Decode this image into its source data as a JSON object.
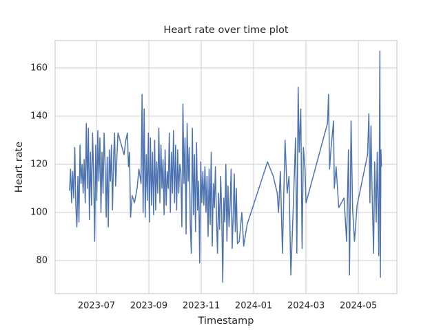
{
  "chart_data": {
    "type": "line",
    "title": "Heart rate over time plot",
    "x_label": "Timestamp",
    "y_label": "Heart rate",
    "color": "#4c72b0",
    "grid": true,
    "xlim": [
      4.42,
      17.47
    ],
    "xticks": [
      {
        "value": 6,
        "label": "2023-07"
      },
      {
        "value": 8,
        "label": "2023-09"
      },
      {
        "value": 10,
        "label": "2023-11"
      },
      {
        "value": 12,
        "label": "2024-01"
      },
      {
        "value": 14,
        "label": "2024-03"
      },
      {
        "value": 16,
        "label": "2024-05"
      }
    ],
    "ylim": [
      66.3,
      171.4
    ],
    "yticks": [
      80,
      100,
      120,
      140,
      160
    ],
    "x": [
      4.97,
      5.01,
      5.05,
      5.09,
      5.13,
      5.17,
      5.21,
      5.25,
      5.29,
      5.33,
      5.37,
      5.41,
      5.45,
      5.49,
      5.53,
      5.57,
      5.61,
      5.65,
      5.69,
      5.73,
      5.77,
      5.81,
      5.85,
      5.89,
      5.93,
      5.97,
      6.01,
      6.05,
      6.09,
      6.13,
      6.17,
      6.21,
      6.25,
      6.29,
      6.33,
      6.37,
      6.41,
      6.45,
      6.49,
      6.53,
      6.57,
      6.61,
      6.65,
      6.69,
      6.73,
      6.82,
      6.95,
      7.05,
      7.12,
      7.18,
      7.22,
      7.26,
      7.3,
      7.36,
      7.45,
      7.55,
      7.62,
      7.7,
      7.74,
      7.78,
      7.82,
      7.86,
      7.9,
      7.94,
      7.98,
      8.02,
      8.06,
      8.1,
      8.14,
      8.18,
      8.22,
      8.26,
      8.3,
      8.34,
      8.38,
      8.42,
      8.46,
      8.5,
      8.54,
      8.58,
      8.62,
      8.66,
      8.7,
      8.74,
      8.78,
      8.82,
      8.86,
      8.9,
      8.94,
      8.98,
      9.02,
      9.06,
      9.1,
      9.14,
      9.18,
      9.22,
      9.26,
      9.3,
      9.34,
      9.38,
      9.42,
      9.46,
      9.5,
      9.54,
      9.58,
      9.62,
      9.66,
      9.7,
      9.74,
      9.78,
      9.82,
      9.86,
      9.9,
      9.94,
      9.98,
      10.02,
      10.06,
      10.1,
      10.14,
      10.18,
      10.22,
      10.26,
      10.3,
      10.34,
      10.38,
      10.42,
      10.46,
      10.5,
      10.54,
      10.58,
      10.62,
      10.66,
      10.7,
      10.74,
      10.78,
      10.82,
      10.86,
      10.9,
      10.94,
      10.98,
      11.02,
      11.06,
      11.1,
      11.14,
      11.18,
      11.22,
      11.26,
      11.3,
      11.34,
      11.38,
      11.45,
      11.55,
      11.62,
      11.75,
      12.53,
      12.75,
      12.9,
      12.95,
      13.02,
      13.1,
      13.2,
      13.28,
      13.35,
      13.42,
      13.5,
      13.6,
      13.65,
      13.7,
      13.74,
      13.8,
      13.85,
      13.9,
      13.96,
      14.0,
      14.82,
      14.86,
      14.9,
      14.95,
      15.05,
      15.08,
      15.15,
      15.25,
      15.45,
      15.55,
      15.62,
      15.66,
      15.72,
      15.78,
      15.85,
      15.95,
      16.35,
      16.4,
      16.44,
      16.48,
      16.52,
      16.58,
      16.62,
      16.68,
      16.72,
      16.78,
      16.82,
      16.84,
      16.86,
      16.88
    ],
    "values": [
      109,
      118,
      104,
      117,
      106,
      127,
      103,
      94,
      115,
      96,
      128,
      112,
      120,
      108,
      122,
      104,
      137,
      110,
      135,
      97,
      125,
      103,
      133,
      116,
      88,
      128,
      105,
      134,
      113,
      131,
      100,
      125,
      108,
      133,
      119,
      98,
      123,
      94,
      126,
      113,
      128,
      101,
      122,
      133,
      111,
      133,
      128,
      124,
      130,
      133,
      119,
      125,
      98,
      107,
      104,
      110,
      118,
      112,
      149,
      100,
      143,
      98,
      124,
      105,
      133,
      96,
      131,
      103,
      125,
      99,
      130,
      101,
      121,
      108,
      135,
      104,
      128,
      110,
      122,
      99,
      126,
      103,
      117,
      110,
      133,
      100,
      125,
      108,
      134,
      104,
      128,
      101,
      126,
      108,
      120,
      117,
      94,
      145,
      112,
      131,
      91,
      137,
      113,
      127,
      95,
      83,
      135,
      99,
      124,
      92,
      129,
      101,
      113,
      79,
      121,
      104,
      117,
      103,
      119,
      100,
      115,
      90,
      118,
      95,
      125,
      86,
      112,
      102,
      119,
      98,
      83,
      108,
      93,
      115,
      100,
      71,
      106,
      96,
      120,
      88,
      111,
      94,
      103,
      118,
      85,
      99,
      116,
      92,
      110,
      87,
      88,
      100,
      86,
      95,
      121,
      115,
      108,
      100,
      117,
      83,
      130,
      108,
      115,
      74,
      98,
      131,
      83,
      152,
      125,
      143,
      85,
      127,
      118,
      104,
      137,
      149,
      118,
      126,
      138,
      110,
      119,
      102,
      106,
      88,
      126,
      74,
      138,
      101,
      88,
      103,
      124,
      141,
      104,
      136,
      110,
      83,
      121,
      96,
      125,
      82,
      167,
      73,
      126,
      119
    ]
  }
}
